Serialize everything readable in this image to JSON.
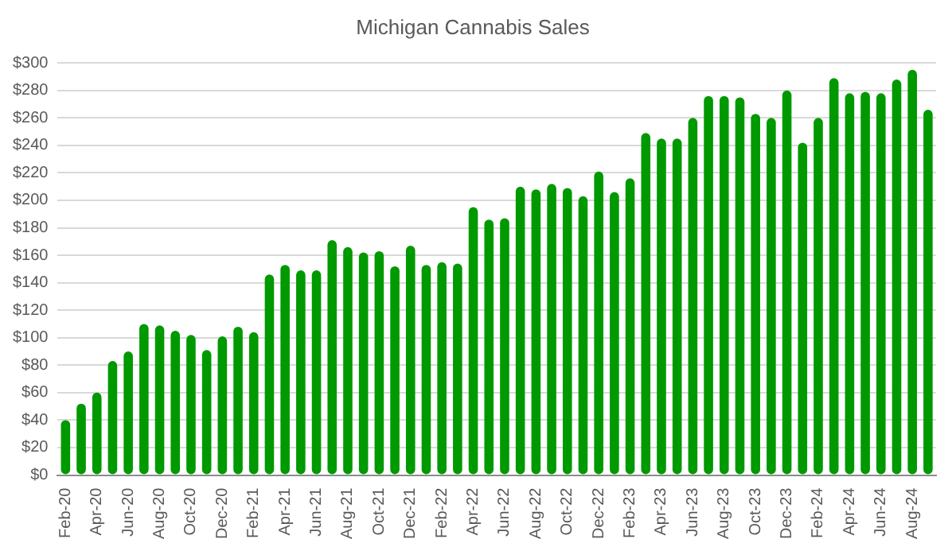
{
  "chart_data": {
    "type": "bar",
    "title": "Michigan Cannabis Sales",
    "categories": [
      "Feb-20",
      null,
      "Apr-20",
      null,
      "Jun-20",
      null,
      "Aug-20",
      null,
      "Oct-20",
      null,
      "Dec-20",
      null,
      "Feb-21",
      null,
      "Apr-21",
      null,
      "Jun-21",
      null,
      "Aug-21",
      null,
      "Oct-21",
      null,
      "Dec-21",
      null,
      "Feb-22",
      null,
      "Apr-22",
      null,
      "Jun-22",
      null,
      "Aug-22",
      null,
      "Oct-22",
      null,
      "Dec-22",
      null,
      "Feb-23",
      null,
      "Apr-23",
      null,
      "Jun-23",
      null,
      "Aug-23",
      null,
      "Oct-23",
      null,
      "Dec-23",
      null,
      "Feb-24",
      null,
      "Apr-24",
      null,
      "Jun-24",
      null,
      "Aug-24",
      null
    ],
    "values": [
      40,
      52,
      60,
      83,
      90,
      110,
      109,
      105,
      102,
      91,
      101,
      108,
      104,
      146,
      153,
      149,
      149,
      171,
      166,
      162,
      163,
      152,
      167,
      153,
      155,
      154,
      195,
      186,
      187,
      210,
      208,
      212,
      209,
      203,
      221,
      206,
      216,
      249,
      245,
      245,
      260,
      276,
      276,
      275,
      263,
      260,
      280,
      242,
      260,
      289,
      278,
      279,
      278,
      288,
      295,
      266
    ],
    "color": "#009900",
    "ylim": [
      0,
      300
    ],
    "yticks": [
      {
        "value": 0,
        "label": "$0"
      },
      {
        "value": 20,
        "label": "$20"
      },
      {
        "value": 40,
        "label": "$40"
      },
      {
        "value": 60,
        "label": "$60"
      },
      {
        "value": 80,
        "label": "$80"
      },
      {
        "value": 100,
        "label": "$100"
      },
      {
        "value": 120,
        "label": "$120"
      },
      {
        "value": 140,
        "label": "$140"
      },
      {
        "value": 160,
        "label": "$160"
      },
      {
        "value": 180,
        "label": "$180"
      },
      {
        "value": 200,
        "label": "$200"
      },
      {
        "value": 220,
        "label": "$220"
      },
      {
        "value": 240,
        "label": "$240"
      },
      {
        "value": 260,
        "label": "$260"
      },
      {
        "value": 280,
        "label": "$280"
      },
      {
        "value": 300,
        "label": "$300"
      }
    ],
    "grid": "y"
  }
}
